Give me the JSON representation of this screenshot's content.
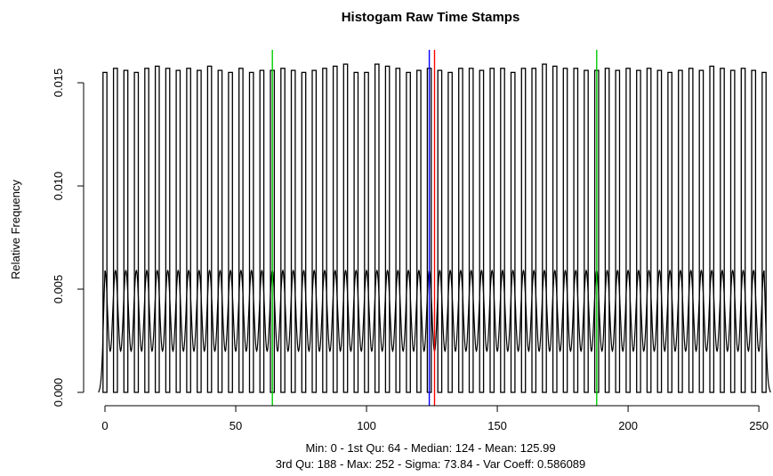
{
  "chart_data": {
    "type": "bar",
    "title": "Histogam Raw Time Stamps",
    "xlabel": "",
    "ylabel": "Relative Frequency",
    "xlim": [
      -3,
      255
    ],
    "ylim": [
      0,
      0.016
    ],
    "x_ticks": [
      0,
      50,
      100,
      150,
      200,
      250
    ],
    "y_ticks": [
      0.0,
      0.005,
      0.01,
      0.015
    ],
    "x_tick_labels": [
      "0",
      "50",
      "100",
      "150",
      "200",
      "250"
    ],
    "y_tick_labels": [
      "0.000",
      "0.005",
      "0.010",
      "0.015"
    ],
    "grid": false,
    "bars": {
      "x": [
        0,
        4,
        8,
        12,
        16,
        20,
        24,
        28,
        32,
        36,
        40,
        44,
        48,
        52,
        56,
        60,
        64,
        68,
        72,
        76,
        80,
        84,
        88,
        92,
        96,
        100,
        104,
        108,
        112,
        116,
        120,
        124,
        128,
        132,
        136,
        140,
        144,
        148,
        152,
        156,
        160,
        164,
        168,
        172,
        176,
        180,
        184,
        188,
        192,
        196,
        200,
        204,
        208,
        212,
        216,
        220,
        224,
        228,
        232,
        236,
        240,
        244,
        248,
        252
      ],
      "values": [
        0.0155,
        0.0157,
        0.0156,
        0.0155,
        0.0157,
        0.0158,
        0.0157,
        0.0156,
        0.0157,
        0.0156,
        0.0158,
        0.0156,
        0.0155,
        0.0157,
        0.0155,
        0.0156,
        0.0156,
        0.0157,
        0.0156,
        0.0155,
        0.0156,
        0.0157,
        0.0158,
        0.0159,
        0.0155,
        0.0155,
        0.0159,
        0.0158,
        0.0157,
        0.0155,
        0.0156,
        0.0157,
        0.0156,
        0.0155,
        0.0157,
        0.0157,
        0.0156,
        0.0157,
        0.0157,
        0.0155,
        0.0157,
        0.0157,
        0.0159,
        0.0158,
        0.0157,
        0.0157,
        0.0156,
        0.0156,
        0.0157,
        0.0156,
        0.0157,
        0.0156,
        0.0157,
        0.0156,
        0.0155,
        0.0156,
        0.0157,
        0.0156,
        0.0158,
        0.0157,
        0.0156,
        0.0157,
        0.0156,
        0.0155
      ]
    },
    "density_curve": {
      "description_peak": 0.0059,
      "description_trough": 0.002
    },
    "vertical_lines": [
      {
        "name": "1st Qu",
        "x": 64,
        "color": "#00cc00"
      },
      {
        "name": "Median",
        "x": 124,
        "color": "#0000ff"
      },
      {
        "name": "Mean",
        "x": 125.99,
        "color": "#ff0000"
      },
      {
        "name": "3rd Qu",
        "x": 188,
        "color": "#00cc00"
      }
    ],
    "summary_line1": "Min: 0 - 1st Qu: 64 - Median: 124 - Mean: 125.99",
    "summary_line2": "3rd Qu: 188 - Max: 252 - Sigma: 73.84 - Var Coeff: 0.586089"
  }
}
